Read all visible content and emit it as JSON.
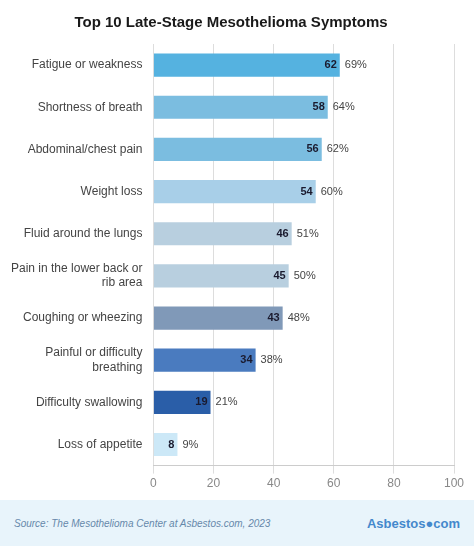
{
  "chart_data": {
    "type": "bar",
    "orientation": "horizontal",
    "title": "Top 10 Late-Stage Mesothelioma Symptoms",
    "categories": [
      "Loss of appetite",
      "Difficulty swallowing",
      "Painful or difficulty\nbreathing",
      "Coughing or wheezing",
      "Pain in the lower back or\nrib area",
      "Fluid around the lungs",
      "Weight loss",
      "Abdominal/chest pain",
      "Shortness of breath",
      "Fatigue or weakness"
    ],
    "values": [
      8,
      19,
      34,
      43,
      45,
      46,
      54,
      56,
      58,
      62
    ],
    "percentages": [
      "9%",
      "21%",
      "38%",
      "48%",
      "50%",
      "51%",
      "60%",
      "62%",
      "64%",
      "69%"
    ],
    "colors": [
      "#cce8f7",
      "#2a5ea8",
      "#4a7bbf",
      "#8099b8",
      "#b8cfdf",
      "#b8cfdf",
      "#a8cfe8",
      "#7bbde0",
      "#7bbde0",
      "#55b2e0"
    ],
    "xlim": [
      0,
      100
    ],
    "xticks": [
      0,
      20,
      40,
      60,
      80,
      100
    ],
    "grid": true,
    "data_labels": true,
    "annotations": [
      "Source: The Mesothelioma Center at Asbestos.com, 2023",
      "Asbestos●com"
    ]
  }
}
